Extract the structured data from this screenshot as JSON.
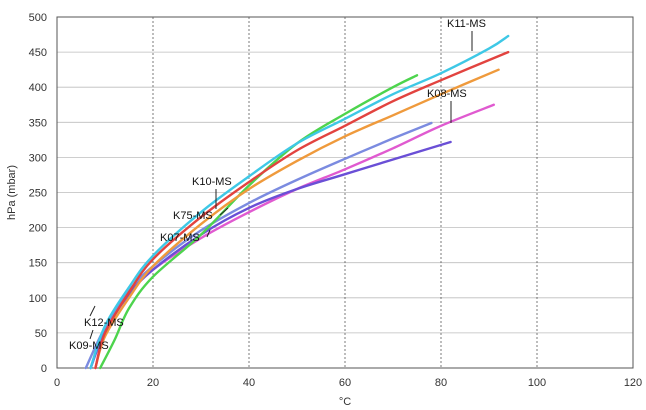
{
  "chart_data": {
    "type": "line",
    "xlabel": "°C",
    "ylabel": "hPa (mbar)",
    "xlim": [
      0,
      120
    ],
    "ylim": [
      0,
      500
    ],
    "x_ticks": [
      "0",
      "20",
      "40",
      "60",
      "80",
      "100",
      "120"
    ],
    "y_ticks": [
      "0",
      "50",
      "100",
      "150",
      "200",
      "250",
      "300",
      "350",
      "400",
      "450",
      "500"
    ],
    "grid": "vertical dashed, horizontal solid",
    "series": [
      {
        "name": "K12-MS",
        "color": "#e05ad0",
        "x": [
          7,
          10,
          15,
          20,
          30,
          40,
          50,
          60,
          70,
          80,
          91
        ],
        "y": [
          0,
          55,
          105,
          140,
          185,
          222,
          255,
          283,
          313,
          345,
          375
        ]
      },
      {
        "name": "K09-MS",
        "color": "#6a4fd6",
        "x": [
          7,
          10,
          15,
          20,
          30,
          40,
          50,
          60,
          70,
          82
        ],
        "y": [
          0,
          52,
          105,
          140,
          190,
          228,
          255,
          276,
          297,
          322
        ]
      },
      {
        "name": "K07-MS",
        "color": "#7b8be0",
        "x": [
          6,
          10,
          15,
          20,
          30,
          40,
          50,
          60,
          70,
          78
        ],
        "y": [
          0,
          58,
          110,
          145,
          196,
          235,
          268,
          298,
          327,
          349
        ]
      },
      {
        "name": "K75-MS",
        "color": "#4dd44d",
        "x": [
          9,
          12,
          15,
          20,
          30,
          40,
          50,
          60,
          70,
          75
        ],
        "y": [
          0,
          40,
          85,
          130,
          190,
          260,
          320,
          362,
          400,
          417
        ]
      },
      {
        "name": "K08-MS",
        "color": "#ef9a3c",
        "x": [
          8,
          10,
          15,
          20,
          30,
          40,
          50,
          60,
          70,
          80,
          92
        ],
        "y": [
          0,
          45,
          100,
          145,
          205,
          255,
          295,
          330,
          360,
          390,
          425
        ]
      },
      {
        "name": "K10-MS",
        "color": "#e2433f",
        "x": [
          8,
          10,
          15,
          20,
          30,
          40,
          50,
          60,
          70,
          80,
          94
        ],
        "y": [
          0,
          50,
          108,
          155,
          215,
          265,
          310,
          345,
          380,
          410,
          450
        ]
      },
      {
        "name": "K11-MS",
        "color": "#3ec8e6",
        "x": [
          7,
          10,
          15,
          20,
          30,
          40,
          50,
          60,
          70,
          80,
          90,
          94
        ],
        "y": [
          0,
          60,
          115,
          160,
          222,
          273,
          320,
          355,
          390,
          420,
          455,
          473
        ]
      }
    ],
    "labels": [
      {
        "text": "K11-MS",
        "series": "K11-MS"
      },
      {
        "text": "K08-MS",
        "series": "K08-MS"
      },
      {
        "text": "K10-MS",
        "series": "K10-MS"
      },
      {
        "text": "K75-MS",
        "series": "K75-MS"
      },
      {
        "text": "K07-MS",
        "series": "K07-MS"
      },
      {
        "text": "K12-MS",
        "series": "K12-MS"
      },
      {
        "text": "K09-MS",
        "series": "K09-MS"
      }
    ]
  }
}
